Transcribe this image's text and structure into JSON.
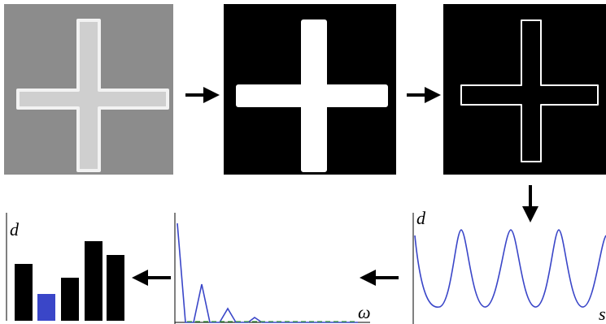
{
  "labels": {
    "bar_chart_axis": "d",
    "spectrum_axis": "ω",
    "profile_y_axis": "d",
    "profile_x_axis": "s"
  }
}
